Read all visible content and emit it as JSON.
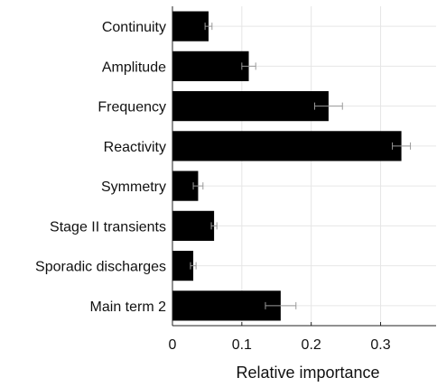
{
  "chart_data": {
    "type": "bar",
    "orientation": "horizontal",
    "categories": [
      "Continuity",
      "Amplitude",
      "Frequency",
      "Reactivity",
      "Symmetry",
      "Stage II transients",
      "Sporadic discharges",
      "Main term 2"
    ],
    "values": [
      0.052,
      0.11,
      0.225,
      0.33,
      0.037,
      0.06,
      0.03,
      0.156
    ],
    "errors": [
      0.005,
      0.01,
      0.02,
      0.013,
      0.007,
      0.004,
      0.004,
      0.022
    ],
    "xlabel": "Relative importance",
    "ylabel": "",
    "title": "",
    "xlim": [
      0,
      0.38
    ],
    "xticks": [
      0,
      0.1,
      0.2,
      0.3
    ],
    "xtick_labels": [
      "0",
      "0.1",
      "0.2",
      "0.3"
    ],
    "grid": true,
    "bar_color": "#000000",
    "error_color": "#9a9a9a"
  }
}
